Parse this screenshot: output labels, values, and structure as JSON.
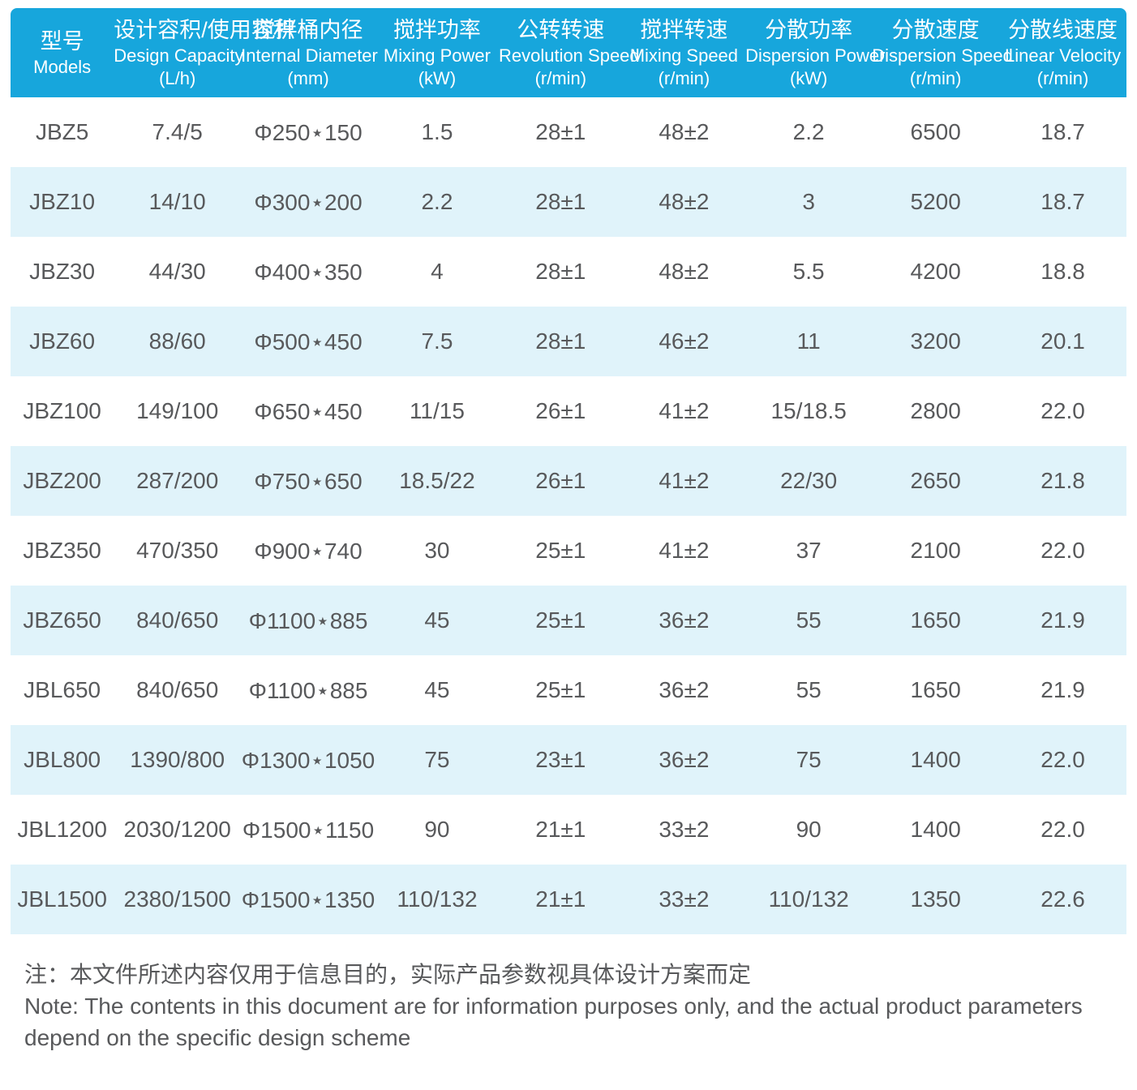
{
  "theme": {
    "header_bg": "#17a6dc",
    "header_text_color": "#ffffff",
    "row_alt_bg": "#e0f3fa",
    "text_color": "#58595b",
    "page_bg": "#ffffff"
  },
  "table": {
    "columns": [
      {
        "zh": "型号",
        "en": "Models",
        "unit": ""
      },
      {
        "zh": "设计容积/使用容积",
        "en": "Design Capacity",
        "unit": "(L/h)"
      },
      {
        "zh": "搅拌桶内径",
        "en": "Internal Diameter",
        "unit": "(mm)"
      },
      {
        "zh": "搅拌功率",
        "en": "Mixing Power",
        "unit": "(kW)"
      },
      {
        "zh": "公转转速",
        "en": "Revolution Speed",
        "unit": "(r/min)"
      },
      {
        "zh": "搅拌转速",
        "en": "Mixing Speed",
        "unit": "(r/min)"
      },
      {
        "zh": "分散功率",
        "en": "Dispersion Power",
        "unit": "(kW)"
      },
      {
        "zh": "分散速度",
        "en": "Dispersion Speed",
        "unit": "(r/min)"
      },
      {
        "zh": "分散线速度",
        "en": "Linear Velocity",
        "unit": "(r/min)"
      }
    ],
    "rows": [
      [
        "JBZ5",
        "7.4/5",
        "Φ250⋆150",
        "1.5",
        "28±1",
        "48±2",
        "2.2",
        "6500",
        "18.7"
      ],
      [
        "JBZ10",
        "14/10",
        "Φ300⋆200",
        "2.2",
        "28±1",
        "48±2",
        "3",
        "5200",
        "18.7"
      ],
      [
        "JBZ30",
        "44/30",
        "Φ400⋆350",
        "4",
        "28±1",
        "48±2",
        "5.5",
        "4200",
        "18.8"
      ],
      [
        "JBZ60",
        "88/60",
        "Φ500⋆450",
        "7.5",
        "28±1",
        "46±2",
        "11",
        "3200",
        "20.1"
      ],
      [
        "JBZ100",
        "149/100",
        "Φ650⋆450",
        "11/15",
        "26±1",
        "41±2",
        "15/18.5",
        "2800",
        "22.0"
      ],
      [
        "JBZ200",
        "287/200",
        "Φ750⋆650",
        "18.5/22",
        "26±1",
        "41±2",
        "22/30",
        "2650",
        "21.8"
      ],
      [
        "JBZ350",
        "470/350",
        "Φ900⋆740",
        "30",
        "25±1",
        "41±2",
        "37",
        "2100",
        "22.0"
      ],
      [
        "JBZ650",
        "840/650",
        "Φ1100⋆885",
        "45",
        "25±1",
        "36±2",
        "55",
        "1650",
        "21.9"
      ],
      [
        "JBL650",
        "840/650",
        "Φ1100⋆885",
        "45",
        "25±1",
        "36±2",
        "55",
        "1650",
        "21.9"
      ],
      [
        "JBL800",
        "1390/800",
        "Φ1300⋆1050",
        "75",
        "23±1",
        "36±2",
        "75",
        "1400",
        "22.0"
      ],
      [
        "JBL1200",
        "2030/1200",
        "Φ1500⋆1150",
        "90",
        "21±1",
        "33±2",
        "90",
        "1400",
        "22.0"
      ],
      [
        "JBL1500",
        "2380/1500",
        "Φ1500⋆1350",
        "110/132",
        "21±1",
        "33±2",
        "110/132",
        "1350",
        "22.6"
      ]
    ]
  },
  "note": {
    "zh": "注：本文件所述内容仅用于信息目的，实际产品参数视具体设计方案而定",
    "en": "Note: The contents in this document are for information purposes only, and the actual product parameters depend on the specific design scheme"
  }
}
